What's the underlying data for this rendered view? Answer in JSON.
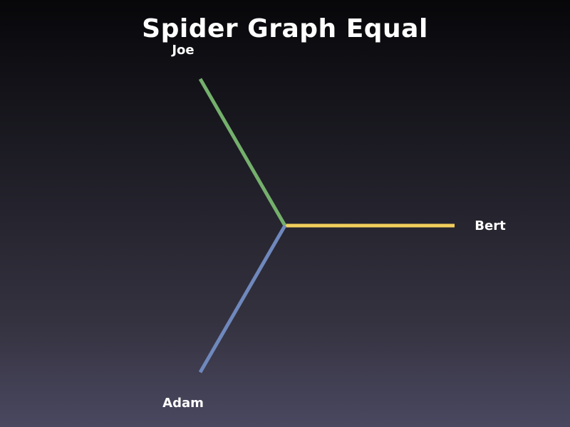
{
  "chart_data": {
    "type": "radar",
    "title": "Spider Graph Equal",
    "axes": [
      {
        "label": "Bert",
        "angle_deg": 0,
        "value": 1,
        "color": "#f2cf5b"
      },
      {
        "label": "Joe",
        "angle_deg": 120,
        "value": 1,
        "color": "#74b06c"
      },
      {
        "label": "Adam",
        "angle_deg": 240,
        "value": 1,
        "color": "#6f88bd"
      }
    ],
    "max_value": 1,
    "grid": false,
    "legend": "none"
  },
  "colors": {
    "background_top": "#07070a",
    "background_bottom": "#4a4860",
    "text": "#ffffff"
  }
}
